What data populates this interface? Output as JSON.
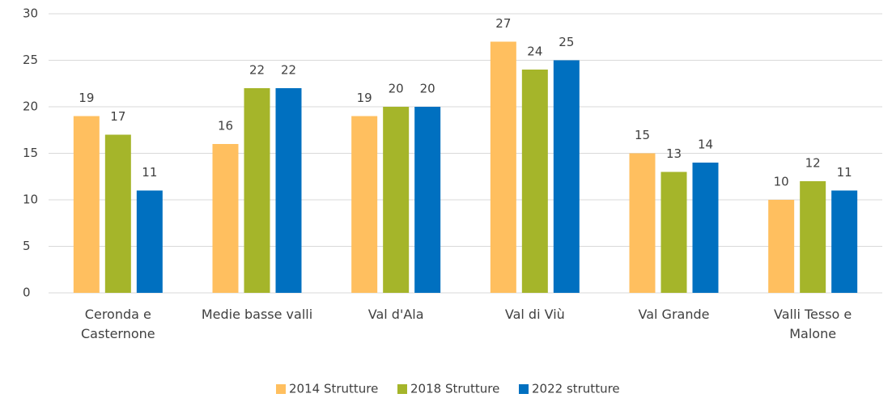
{
  "chart_data": {
    "type": "bar",
    "categories": [
      "Ceronda e Casternone",
      "Medie basse valli",
      "Val d'Ala",
      "Val di Viù",
      "Val Grande",
      "Valli Tesso e Malone"
    ],
    "series": [
      {
        "name": "2014 Strutture",
        "color": "#ffbf5f",
        "values": [
          19,
          16,
          19,
          27,
          15,
          10
        ]
      },
      {
        "name": "2018 Strutture",
        "color": "#a5b52a",
        "values": [
          17,
          22,
          20,
          24,
          13,
          12
        ]
      },
      {
        "name": "2022 strutture",
        "color": "#0070c0",
        "values": [
          11,
          22,
          20,
          25,
          14,
          11
        ]
      }
    ],
    "ylim": [
      0,
      30
    ],
    "yticks": [
      0,
      5,
      10,
      15,
      20,
      25,
      30
    ],
    "grid": true,
    "legend": "bottom"
  }
}
